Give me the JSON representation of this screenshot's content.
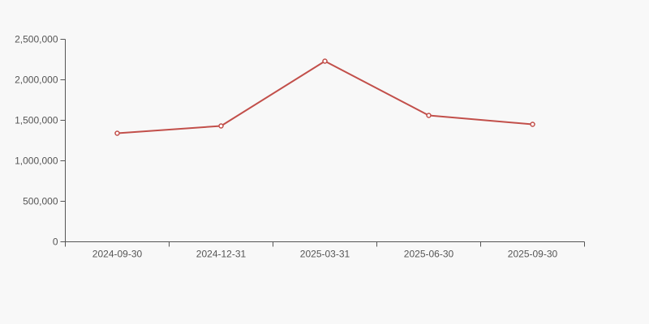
{
  "chart_data": {
    "type": "line",
    "title": "",
    "xlabel": "",
    "ylabel": "",
    "categories": [
      "2024-09-30",
      "2024-12-31",
      "2025-03-31",
      "2025-06-30",
      "2025-09-30"
    ],
    "values": [
      1340000,
      1430000,
      2230000,
      1560000,
      1450000
    ],
    "ylim": [
      0,
      2500000
    ],
    "y_ticks": [
      0,
      500000,
      1000000,
      1500000,
      2000000,
      2500000
    ],
    "y_tick_labels": [
      "0",
      "500,000",
      "1,000,000",
      "1,500,000",
      "2,000,000",
      "2,500,000"
    ],
    "grid": false,
    "legend": [],
    "legend_position": "none",
    "colors": {
      "line": "#c24f4a",
      "marker_fill": "#ffffff",
      "axis": "#555555",
      "tick_label": "#555555",
      "background": "#f8f8f8"
    },
    "marker": {
      "shape": "circle",
      "radius": 2.5,
      "stroke_width": 1.5
    },
    "line_width": 2
  }
}
